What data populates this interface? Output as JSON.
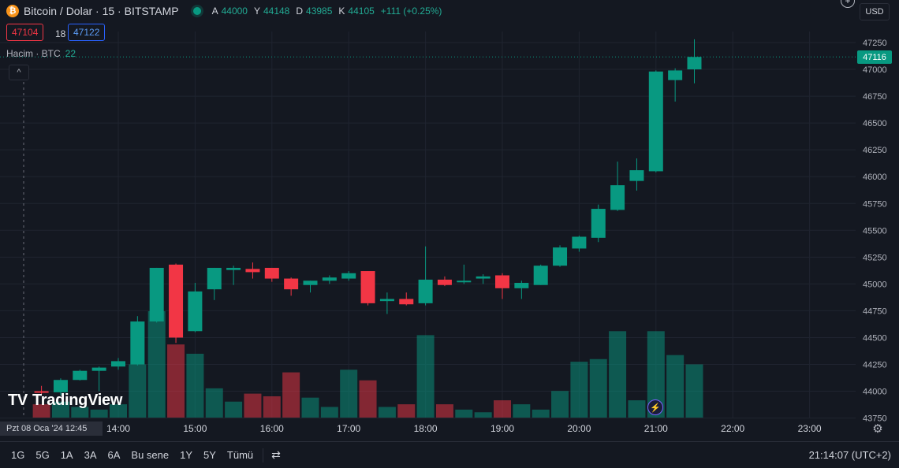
{
  "header": {
    "symbol_badge": "₿",
    "title": "Bitcoin / Dolar · 15 · BITSTAMP",
    "ohlc": [
      {
        "k": "A",
        "v": "44000"
      },
      {
        "k": "Y",
        "v": "44148"
      },
      {
        "k": "D",
        "v": "43985"
      },
      {
        "k": "K",
        "v": "44105"
      },
      {
        "k": "",
        "v": "+111 (+0.25%)"
      }
    ]
  },
  "trade": {
    "sell": "47104",
    "spread": "18",
    "buy": "47122"
  },
  "volume_legend": {
    "label": "Hacim · BTC",
    "value": "22"
  },
  "collapse_icon": "^",
  "currency": "USD",
  "add_icon": "+",
  "last_price": "47116",
  "logo": {
    "mark": "TV",
    "text": "TradingView"
  },
  "cursor_date": "Pzt 08 Oca '24   12:45",
  "bottom": {
    "ranges": [
      "1G",
      "5G",
      "1A",
      "3A",
      "6A",
      "Bu sene",
      "1Y",
      "5Y",
      "Tümü"
    ],
    "calendar_icon": "⇄",
    "clock": "21:14:07 (UTC+2)"
  },
  "colors": {
    "up": "#089981",
    "down": "#f23645",
    "bg": "#141821",
    "grid": "#1f2430"
  },
  "chart_data": {
    "type": "candlestick",
    "y_ticks": [
      47250,
      47000,
      46750,
      46500,
      46250,
      46000,
      45750,
      45500,
      45250,
      45000,
      44750,
      44500,
      44250,
      44000,
      43750
    ],
    "x_ticks": [
      "14:00",
      "15:00",
      "16:00",
      "17:00",
      "18:00",
      "19:00",
      "20:00",
      "21:00",
      "22:00",
      "23:00"
    ],
    "candles": [
      {
        "t": "13:00",
        "o": 44000,
        "h": 44050,
        "l": 43970,
        "c": 43990
      },
      {
        "t": "13:15",
        "o": 43990,
        "h": 44120,
        "l": 43960,
        "c": 44105
      },
      {
        "t": "13:30",
        "o": 44105,
        "h": 44200,
        "l": 44100,
        "c": 44190
      },
      {
        "t": "13:45",
        "o": 44190,
        "h": 44230,
        "l": 44000,
        "c": 44220
      },
      {
        "t": "14:00",
        "o": 44230,
        "h": 44310,
        "l": 44200,
        "c": 44280
      },
      {
        "t": "14:15",
        "o": 44250,
        "h": 44700,
        "l": 44240,
        "c": 44650
      },
      {
        "t": "14:30",
        "o": 44650,
        "h": 45150,
        "l": 44640,
        "c": 45150
      },
      {
        "t": "14:45",
        "o": 45180,
        "h": 45190,
        "l": 44450,
        "c": 44500
      },
      {
        "t": "15:00",
        "o": 44560,
        "h": 45010,
        "l": 44550,
        "c": 44930
      },
      {
        "t": "15:15",
        "o": 44950,
        "h": 45150,
        "l": 44850,
        "c": 45150
      },
      {
        "t": "15:30",
        "o": 45130,
        "h": 45170,
        "l": 44990,
        "c": 45150
      },
      {
        "t": "15:45",
        "o": 45140,
        "h": 45200,
        "l": 45050,
        "c": 45110
      },
      {
        "t": "16:00",
        "o": 45150,
        "h": 45150,
        "l": 45020,
        "c": 45050
      },
      {
        "t": "16:15",
        "o": 45050,
        "h": 45060,
        "l": 44890,
        "c": 44950
      },
      {
        "t": "16:30",
        "o": 44990,
        "h": 45030,
        "l": 44920,
        "c": 45030
      },
      {
        "t": "16:45",
        "o": 45030,
        "h": 45080,
        "l": 45000,
        "c": 45060
      },
      {
        "t": "17:00",
        "o": 45050,
        "h": 45120,
        "l": 45030,
        "c": 45100
      },
      {
        "t": "17:15",
        "o": 45120,
        "h": 45120,
        "l": 44800,
        "c": 44820
      },
      {
        "t": "17:30",
        "o": 44840,
        "h": 44920,
        "l": 44720,
        "c": 44860
      },
      {
        "t": "17:45",
        "o": 44860,
        "h": 44920,
        "l": 44800,
        "c": 44810
      },
      {
        "t": "18:00",
        "o": 44820,
        "h": 45350,
        "l": 44800,
        "c": 45040
      },
      {
        "t": "18:15",
        "o": 45040,
        "h": 45070,
        "l": 44980,
        "c": 44990
      },
      {
        "t": "18:30",
        "o": 45020,
        "h": 45180,
        "l": 45000,
        "c": 45030
      },
      {
        "t": "18:45",
        "o": 45050,
        "h": 45090,
        "l": 45000,
        "c": 45070
      },
      {
        "t": "19:00",
        "o": 45080,
        "h": 45100,
        "l": 44860,
        "c": 44960
      },
      {
        "t": "19:15",
        "o": 44960,
        "h": 45030,
        "l": 44860,
        "c": 45010
      },
      {
        "t": "19:30",
        "o": 44990,
        "h": 45180,
        "l": 44990,
        "c": 45170
      },
      {
        "t": "19:45",
        "o": 45170,
        "h": 45360,
        "l": 45160,
        "c": 45340
      },
      {
        "t": "20:00",
        "o": 45330,
        "h": 45450,
        "l": 45300,
        "c": 45440
      },
      {
        "t": "20:15",
        "o": 45430,
        "h": 45740,
        "l": 45390,
        "c": 45700
      },
      {
        "t": "20:30",
        "o": 45690,
        "h": 46140,
        "l": 45680,
        "c": 45920
      },
      {
        "t": "20:45",
        "o": 45960,
        "h": 46170,
        "l": 45870,
        "c": 46060
      },
      {
        "t": "21:00",
        "o": 46050,
        "h": 46990,
        "l": 46040,
        "c": 46980
      },
      {
        "t": "21:15",
        "o": 46900,
        "h": 47010,
        "l": 46700,
        "c": 46990
      },
      {
        "t": "21:30",
        "o": 47000,
        "h": 47280,
        "l": 46870,
        "c": 47116
      }
    ]
  }
}
